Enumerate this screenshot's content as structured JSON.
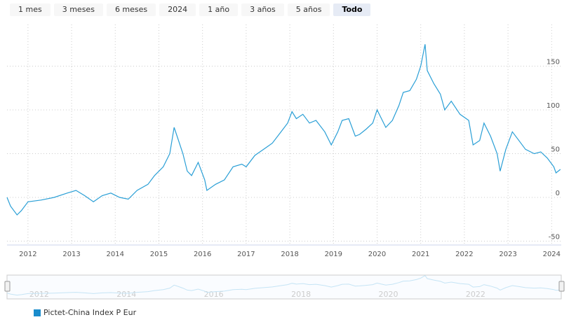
{
  "range_buttons": [
    {
      "label": "1 mes"
    },
    {
      "label": "3 meses"
    },
    {
      "label": "6 meses"
    },
    {
      "label": "2024"
    },
    {
      "label": "1 año"
    },
    {
      "label": "3 años"
    },
    {
      "label": "5 años"
    },
    {
      "label": "Todo",
      "selected": true
    }
  ],
  "chart_data": {
    "type": "line",
    "grid": true,
    "line_color": "#2a9fd6",
    "xlim": [
      2011.52,
      2024.22
    ],
    "ylim": [
      -50,
      190
    ],
    "x_ticks": [
      "2012",
      "2013",
      "2014",
      "2015",
      "2016",
      "2017",
      "2018",
      "2019",
      "2020",
      "2021",
      "2022",
      "2023",
      "2024"
    ],
    "y_ticks": [
      "-50",
      "0",
      "50",
      "100",
      "150"
    ],
    "navigator_ticks": [
      "2012",
      "2014",
      "2016",
      "2018",
      "2020",
      "2022"
    ],
    "legend": "bottom-left",
    "series": [
      {
        "name": "Pictet-China Index P Eur",
        "x": [
          2011.52,
          2011.6,
          2011.75,
          2011.85,
          2012.0,
          2012.3,
          2012.6,
          2012.9,
          2013.1,
          2013.3,
          2013.5,
          2013.7,
          2013.9,
          2014.1,
          2014.3,
          2014.5,
          2014.75,
          2014.9,
          2015.1,
          2015.25,
          2015.35,
          2015.45,
          2015.55,
          2015.65,
          2015.75,
          2015.9,
          2016.05,
          2016.1,
          2016.3,
          2016.5,
          2016.7,
          2016.9,
          2017.0,
          2017.2,
          2017.4,
          2017.6,
          2017.8,
          2017.95,
          2018.05,
          2018.15,
          2018.3,
          2018.45,
          2018.6,
          2018.8,
          2018.95,
          2019.1,
          2019.2,
          2019.35,
          2019.5,
          2019.6,
          2019.75,
          2019.9,
          2020.0,
          2020.1,
          2020.2,
          2020.35,
          2020.5,
          2020.6,
          2020.75,
          2020.9,
          2021.0,
          2021.1,
          2021.15,
          2021.3,
          2021.45,
          2021.55,
          2021.7,
          2021.9,
          2022.1,
          2022.2,
          2022.35,
          2022.45,
          2022.6,
          2022.75,
          2022.82,
          2022.95,
          2023.1,
          2023.25,
          2023.4,
          2023.6,
          2023.75,
          2023.9,
          2024.05,
          2024.1,
          2024.2
        ],
        "y": [
          0,
          -10,
          -20,
          -15,
          -5,
          -3,
          0,
          5,
          8,
          2,
          -5,
          2,
          5,
          0,
          -2,
          8,
          15,
          25,
          35,
          50,
          80,
          65,
          50,
          30,
          25,
          40,
          20,
          8,
          15,
          20,
          35,
          38,
          35,
          48,
          55,
          62,
          75,
          85,
          98,
          90,
          95,
          85,
          88,
          75,
          60,
          75,
          88,
          90,
          70,
          72,
          78,
          85,
          100,
          90,
          80,
          88,
          105,
          120,
          122,
          135,
          150,
          175,
          145,
          130,
          118,
          100,
          110,
          95,
          88,
          60,
          65,
          85,
          70,
          50,
          30,
          55,
          75,
          65,
          55,
          50,
          52,
          45,
          35,
          28,
          32
        ]
      }
    ]
  }
}
